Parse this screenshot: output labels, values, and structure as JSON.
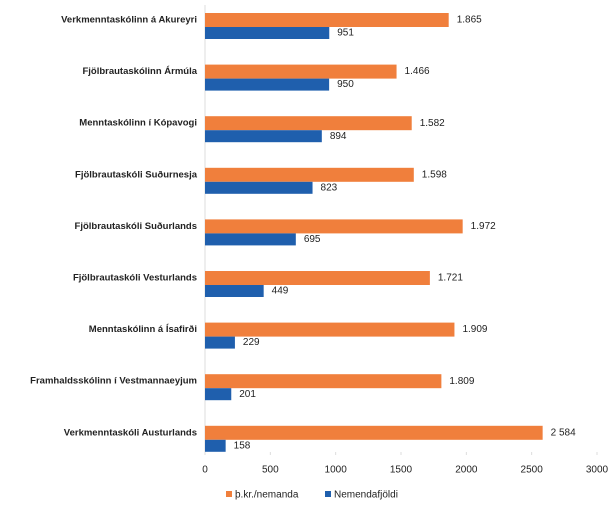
{
  "chart_data": {
    "type": "bar",
    "orientation": "horizontal",
    "categories": [
      "Verkmenntaskólinn á Akureyri",
      "Fjölbrautaskólinn Ármúla",
      "Menntaskólinn í Kópavogi",
      "Fjölbrautaskóli Suðurnesja",
      "Fjölbrautaskóli Suðurlands",
      "Fjölbrautaskóli Vesturlands",
      "Menntaskólinn á Ísafirði",
      "Framhaldsskólinn í Vestmannaeyjum",
      "Verkmenntaskóli Austurlands"
    ],
    "series": [
      {
        "name": "þ.kr./nemanda",
        "color": "#f07f3c",
        "values": [
          1865,
          1466,
          1582,
          1598,
          1972,
          1721,
          1909,
          1809,
          2584
        ],
        "value_labels": [
          "1.865",
          "1.466",
          "1.582",
          "1.598",
          "1.972",
          "1.721",
          "1.909",
          "1.809",
          "2 584"
        ]
      },
      {
        "name": "Nemendafjöldi",
        "color": "#1f5fad",
        "values": [
          951,
          950,
          894,
          823,
          695,
          449,
          229,
          201,
          158
        ]
      }
    ],
    "xlim": [
      0,
      3000
    ],
    "xticks": [
      0,
      500,
      1000,
      1500,
      2000,
      2500,
      3000
    ],
    "legend": "bottom"
  }
}
